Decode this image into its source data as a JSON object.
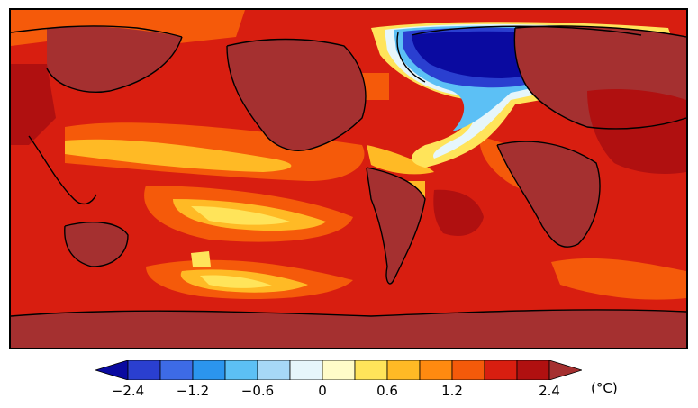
{
  "colorbar": {
    "unit": "(°C)",
    "ticks": [
      {
        "label": "−2.4",
        "value": -2.4
      },
      {
        "label": "−1.2",
        "value": -1.2
      },
      {
        "label": "−0.6",
        "value": -0.6
      },
      {
        "label": "0",
        "value": 0
      },
      {
        "label": "0.6",
        "value": 0.6
      },
      {
        "label": "1.2",
        "value": 1.2
      },
      {
        "label": "2.4",
        "value": 2.4
      }
    ],
    "colors": [
      "#0a0aa0",
      "#2a3fd0",
      "#3d6be6",
      "#2b95ee",
      "#5cc0f5",
      "#a6d8f7",
      "#e6f6fb",
      "#fffcc8",
      "#ffe45a",
      "#ffba25",
      "#ff8a10",
      "#f55a0a",
      "#d81e10",
      "#b01010",
      "#a53030"
    ]
  },
  "map": {
    "colors": {
      "ocean_warm": "#d81e10",
      "land_dark": "#a53030",
      "strong_warm": "#b01010",
      "orange": "#f55a0a",
      "light_orange": "#ffba25",
      "yellow": "#ffe45a",
      "pale_yellow": "#fffcc8",
      "cold_core": "#0a0aa0",
      "cold_mid": "#2a3fd0",
      "cold_light": "#5cc0f5",
      "cold_pale": "#e6f6fb",
      "coastline": "#000000"
    }
  }
}
